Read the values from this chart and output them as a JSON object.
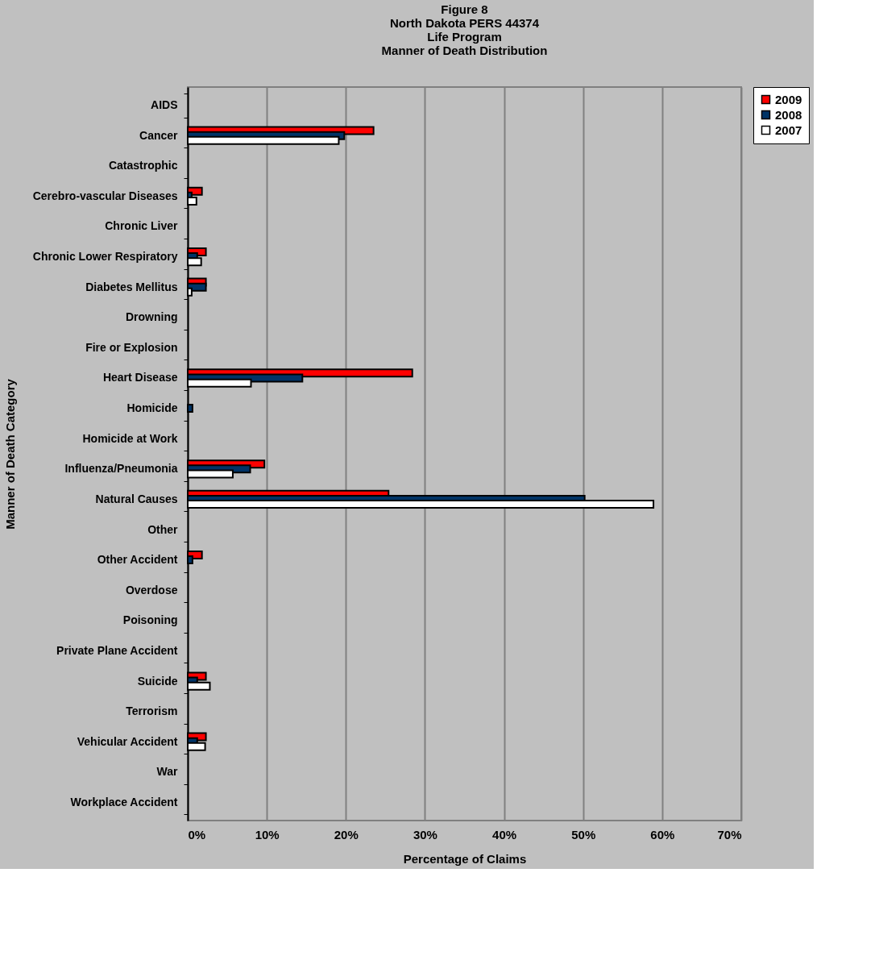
{
  "chart_data": {
    "type": "bar",
    "orientation": "horizontal",
    "title": [
      "Figure 8",
      "North Dakota PERS 44374",
      "Life Program",
      "Manner of Death Distribution"
    ],
    "xlabel": "Percentage of Claims",
    "ylabel": "Manner of Death Category",
    "categories": [
      "AIDS",
      "Cancer",
      "Catastrophic",
      "Cerebro-vascular Diseases",
      "Chronic Liver",
      "Chronic Lower Respiratory",
      "Diabetes Mellitus",
      "Drowning",
      "Fire or Explosion",
      "Heart Disease",
      "Homicide",
      "Homicide at Work",
      "Influenza/Pneumonia",
      "Natural Causes",
      "Other",
      "Other Accident",
      "Overdose",
      "Poisoning",
      "Private Plane Accident",
      "Suicide",
      "Terrorism",
      "Vehicular Accident",
      "War",
      "Workplace Accident"
    ],
    "series": [
      {
        "name": "2009",
        "color": "#ff0000",
        "values": [
          null,
          23.5,
          null,
          1.8,
          null,
          2.3,
          2.3,
          null,
          null,
          28.4,
          null,
          null,
          9.7,
          25.4,
          null,
          1.8,
          null,
          null,
          null,
          2.3,
          null,
          2.3,
          null,
          null
        ]
      },
      {
        "name": "2008",
        "color": "#003366",
        "values": [
          null,
          19.8,
          null,
          0.5,
          null,
          1.2,
          2.3,
          null,
          null,
          14.5,
          0.6,
          null,
          7.9,
          50.2,
          null,
          0.6,
          null,
          null,
          null,
          1.2,
          null,
          1.2,
          null,
          null
        ]
      },
      {
        "name": "2007",
        "color": "#ffffff",
        "values": [
          null,
          19.1,
          null,
          1.1,
          null,
          1.7,
          0.5,
          null,
          null,
          8.0,
          null,
          null,
          5.7,
          58.9,
          null,
          null,
          null,
          null,
          null,
          2.8,
          null,
          2.2,
          null,
          null
        ]
      }
    ],
    "xlim": [
      0,
      70
    ],
    "xticks": [
      {
        "value": 0,
        "label": "0%"
      },
      {
        "value": 10,
        "label": "10%"
      },
      {
        "value": 20,
        "label": "20%"
      },
      {
        "value": 30,
        "label": "30%"
      },
      {
        "value": 40,
        "label": "40%"
      },
      {
        "value": 50,
        "label": "50%"
      },
      {
        "value": 60,
        "label": "60%"
      },
      {
        "value": 70,
        "label": "70%"
      }
    ],
    "grid": "x",
    "legend": "right"
  }
}
